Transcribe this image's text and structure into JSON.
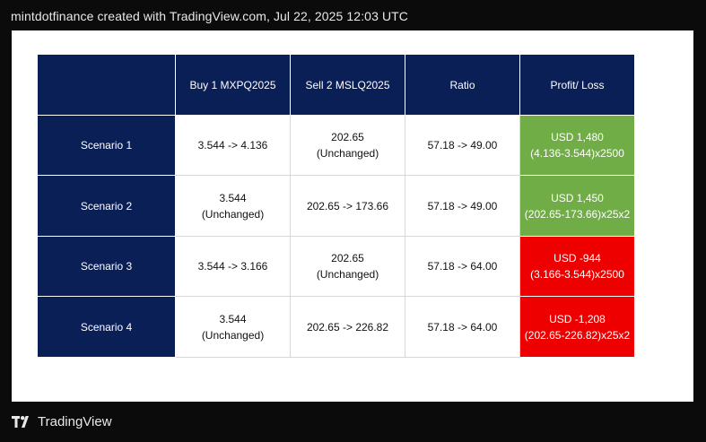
{
  "header": {
    "title": "mintdotfinance created with TradingView.com, Jul 22, 2025 12:03 UTC"
  },
  "table": {
    "headers": [
      "",
      "Buy 1 MXPQ2025",
      "Sell 2 MSLQ2025",
      "Ratio",
      "Profit/ Loss"
    ],
    "rows": [
      {
        "scenario": "Scenario 1",
        "buy": "3.544 -> 4.136",
        "sell": "202.65\n(Unchanged)",
        "ratio": "57.18 -> 49.00",
        "pl": "USD 1,480\n(4.136-3.544)x2500",
        "pl_color": "#70ad47"
      },
      {
        "scenario": "Scenario 2",
        "buy": "3.544\n(Unchanged)",
        "sell": "202.65 -> 173.66",
        "ratio": "57.18 -> 49.00",
        "pl": "USD 1,450\n(202.65-173.66)x25x2",
        "pl_color": "#70ad47"
      },
      {
        "scenario": "Scenario 3",
        "buy": "3.544 -> 3.166",
        "sell": "202.65\n(Unchanged)",
        "ratio": "57.18 -> 64.00",
        "pl": "USD -944\n(3.166-3.544)x2500",
        "pl_color": "#ee0000"
      },
      {
        "scenario": "Scenario 4",
        "buy": "3.544\n(Unchanged)",
        "sell": "202.65 -> 226.82",
        "ratio": "57.18 -> 64.00",
        "pl": "USD -1,208\n(202.65-226.82)x25x2",
        "pl_color": "#ee0000"
      }
    ]
  },
  "footer": {
    "brand": "TradingView",
    "logo_icon": "tradingview-logo-icon"
  }
}
